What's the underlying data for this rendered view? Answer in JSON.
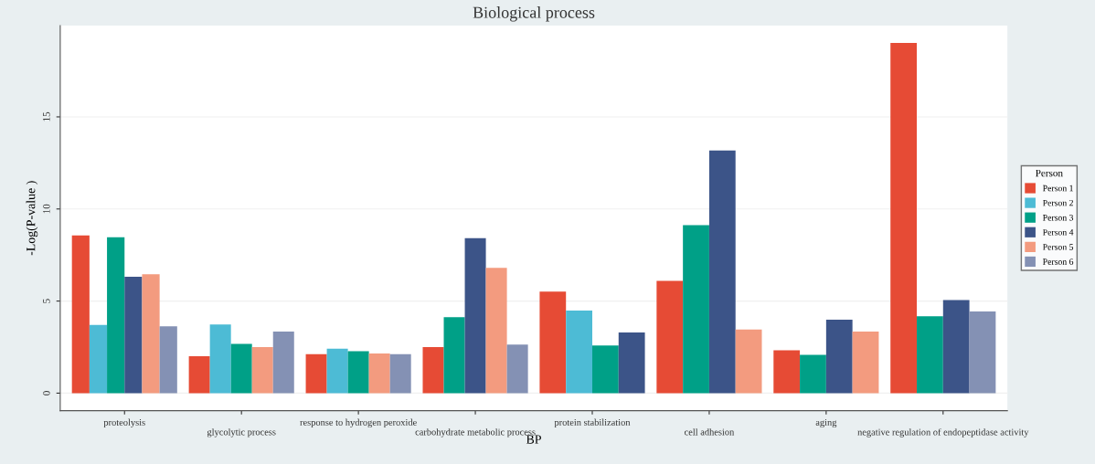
{
  "chart_data": {
    "type": "bar",
    "title": "Biological process",
    "xlabel": "BP",
    "ylabel": "-Log(P-value )",
    "legend_title": "Person",
    "categories": [
      "proteolysis",
      "glycolytic process",
      "response to hydrogen peroxide",
      "carbohydrate metabolic process",
      "protein stabilization",
      "cell adhesion",
      "aging",
      "negative regulation of endopeptidase activity"
    ],
    "series": [
      {
        "name": "Person 1",
        "color": "#e64b35",
        "values": [
          8.56,
          2.01,
          2.12,
          2.5,
          5.51,
          6.1,
          2.33,
          19.01
        ]
      },
      {
        "name": "Person 2",
        "color": "#4dbbd5",
        "values": [
          3.7,
          3.73,
          2.41,
          null,
          4.49,
          null,
          null,
          null
        ]
      },
      {
        "name": "Person 3",
        "color": "#00a087",
        "values": [
          8.47,
          2.67,
          2.28,
          4.13,
          2.59,
          9.12,
          2.08,
          4.18
        ]
      },
      {
        "name": "Person 4",
        "color": "#3c5488",
        "values": [
          6.32,
          null,
          null,
          8.42,
          3.3,
          13.18,
          3.99,
          5.06
        ]
      },
      {
        "name": "Person 5",
        "color": "#f39b7f",
        "values": [
          6.45,
          2.5,
          2.15,
          6.8,
          null,
          3.45,
          3.34,
          null
        ]
      },
      {
        "name": "Person 6",
        "color": "#8491b4",
        "values": [
          3.63,
          3.34,
          2.12,
          2.64,
          null,
          null,
          null,
          4.43
        ]
      }
    ],
    "ylim": [
      -0.95,
      19.96
    ],
    "yticks": [
      0,
      5,
      10,
      15
    ],
    "grid": "y",
    "legend": "right"
  }
}
